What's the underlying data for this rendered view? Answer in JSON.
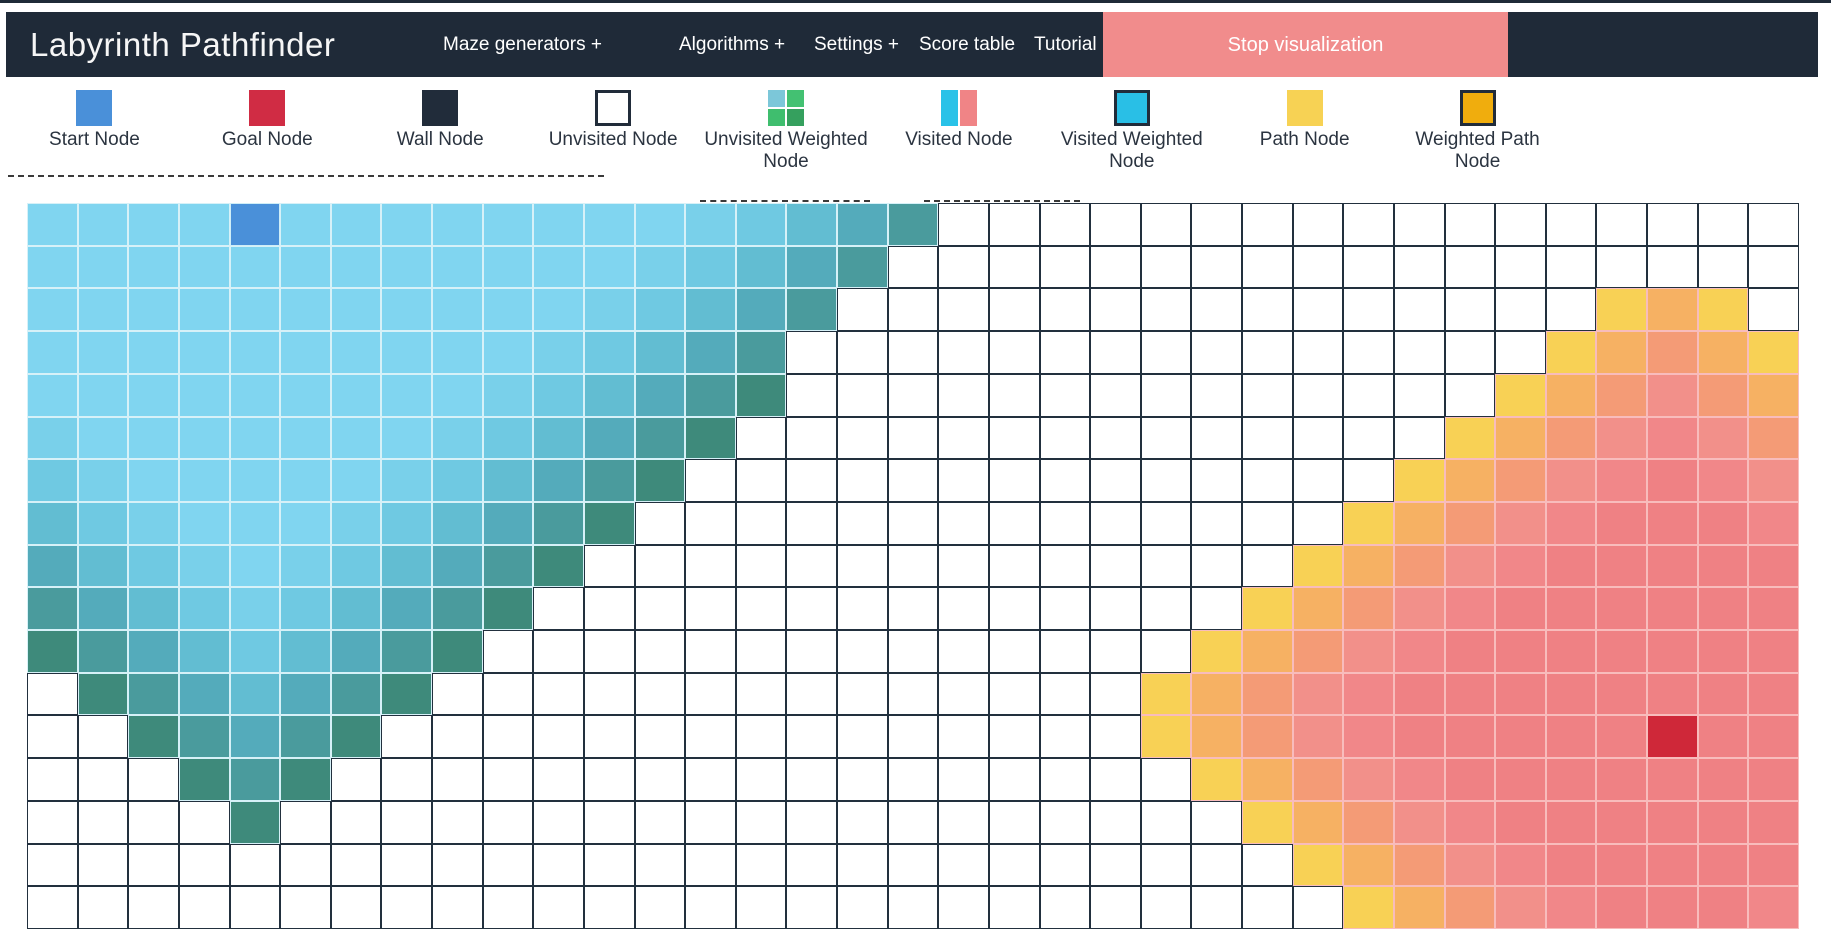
{
  "navbar": {
    "title": "Labyrinth Pathfinder",
    "items": [
      {
        "id": "maze-generators",
        "label": "Maze generators +"
      },
      {
        "id": "algorithms",
        "label": "Algorithms +"
      },
      {
        "id": "settings",
        "label": "Settings +"
      },
      {
        "id": "score-table",
        "label": "Score table"
      },
      {
        "id": "tutorial",
        "label": "Tutorial"
      }
    ],
    "stop_button_label": "Stop visualization",
    "colors": {
      "background": "#1f2a38",
      "stop_button": "#f18c8c",
      "text": "#ffffff"
    }
  },
  "legend": {
    "items": [
      {
        "id": "start",
        "label": "Start Node",
        "swatch": {
          "type": "solid",
          "color": "#4a90d9"
        }
      },
      {
        "id": "goal",
        "label": "Goal Node",
        "swatch": {
          "type": "solid",
          "color": "#d02c44"
        }
      },
      {
        "id": "wall",
        "label": "Wall Node",
        "swatch": {
          "type": "solid",
          "color": "#212c3a"
        }
      },
      {
        "id": "unvisited",
        "label": "Unvisited Node",
        "swatch": {
          "type": "solid",
          "color": "#ffffff",
          "border": "#212c3a"
        }
      },
      {
        "id": "unvisited-weighted",
        "label": "Unvisited Weighted Node",
        "swatch": {
          "type": "quad",
          "colors": [
            "#7cc7d9",
            "#43c172",
            "#3fbe6e",
            "#35a05e"
          ],
          "dotted": true
        }
      },
      {
        "id": "visited",
        "label": "Visited Node",
        "swatch": {
          "type": "split",
          "colors": [
            "#29c2e8",
            "#f08486"
          ],
          "dotted": true
        }
      },
      {
        "id": "visited-weighted",
        "label": "Visited Weighted Node",
        "swatch": {
          "type": "solid",
          "color": "#29bfe6",
          "border": "#212c3a"
        }
      },
      {
        "id": "path",
        "label": "Path Node",
        "swatch": {
          "type": "solid",
          "color": "#f7d254",
          "dotted": true
        }
      },
      {
        "id": "weighted-path",
        "label": "Weighted Path Node",
        "swatch": {
          "type": "solid",
          "color": "#f0ad0d",
          "border": "#212c3a"
        }
      }
    ]
  },
  "grid": {
    "cols": 35,
    "rows": 17,
    "start": {
      "row": 0,
      "col": 4
    },
    "goal": {
      "row": 12,
      "col": 32
    },
    "cell_tokens": [
      "1111S1111111123456.................",
      "11111111111123456..................",
      "1111111111123456...............YOY.",
      "111111111123456...............YOQOY",
      "111111111234567..............YOQAQO",
      "21111111234567..............YOQABAQ",
      "3211111234567..............YOQABCBA",
      "432111234567..............YOQABCCCB",
      "54321234567..............YOQABCCCCC",
      "6543234567..............YOQABCCCCCC",
      "765434567..............YOQABCCCCCCC",
      ".7654567..............YOQABCCCCCCCC",
      "..76567...............YOQABCCCCCGCC",
      "...767.................YOQABCCCCCCC",
      "....7...................YOQABCCCCCC",
      ".........................YOQABCCCCC",
      "..........................YOQABCCCB"
    ],
    "palette": {
      ".": {
        "bg": "#ffffff",
        "border": "#22303e",
        "state": "unvisited"
      },
      "S": {
        "bg": "#4a90d9",
        "border": "#cfeef7",
        "state": "start"
      },
      "G": {
        "bg": "#cf2839",
        "border": "#f8bcbc",
        "state": "goal"
      },
      "1": {
        "bg": "#80d5f0",
        "border": "#d6f1f8",
        "state": "visited",
        "tex": true
      },
      "2": {
        "bg": "#79d0ea",
        "border": "#d6f1f8",
        "state": "visited",
        "tex": true
      },
      "3": {
        "bg": "#6fc9e2",
        "border": "#d6f1f8",
        "state": "visited",
        "tex": true
      },
      "4": {
        "bg": "#62bdd2",
        "border": "#d6f1f8",
        "state": "visited",
        "tex": true
      },
      "5": {
        "bg": "#54abbb",
        "border": "#d6f1f8",
        "state": "visited",
        "tex": true
      },
      "6": {
        "bg": "#4a9b9d",
        "border": "#d6f1f8",
        "state": "visited",
        "tex": true
      },
      "7": {
        "bg": "#3e8a7b",
        "border": "#d6f1f8",
        "state": "visited",
        "tex": true
      },
      "Y": {
        "bg": "#f8d155",
        "border": "#f8bcbc",
        "state": "visited",
        "tex": true
      },
      "O": {
        "bg": "#f6b163",
        "border": "#f8bcbc",
        "state": "visited",
        "tex": true
      },
      "Q": {
        "bg": "#f49b76",
        "border": "#f8bcbc",
        "state": "visited",
        "tex": true
      },
      "A": {
        "bg": "#f2908a",
        "border": "#f8bcbc",
        "state": "visited",
        "tex": true
      },
      "B": {
        "bg": "#f18789",
        "border": "#f8bcbc",
        "state": "visited",
        "tex": true
      },
      "C": {
        "bg": "#ef8184",
        "border": "#f8bcbc",
        "state": "visited",
        "tex": true
      }
    }
  }
}
